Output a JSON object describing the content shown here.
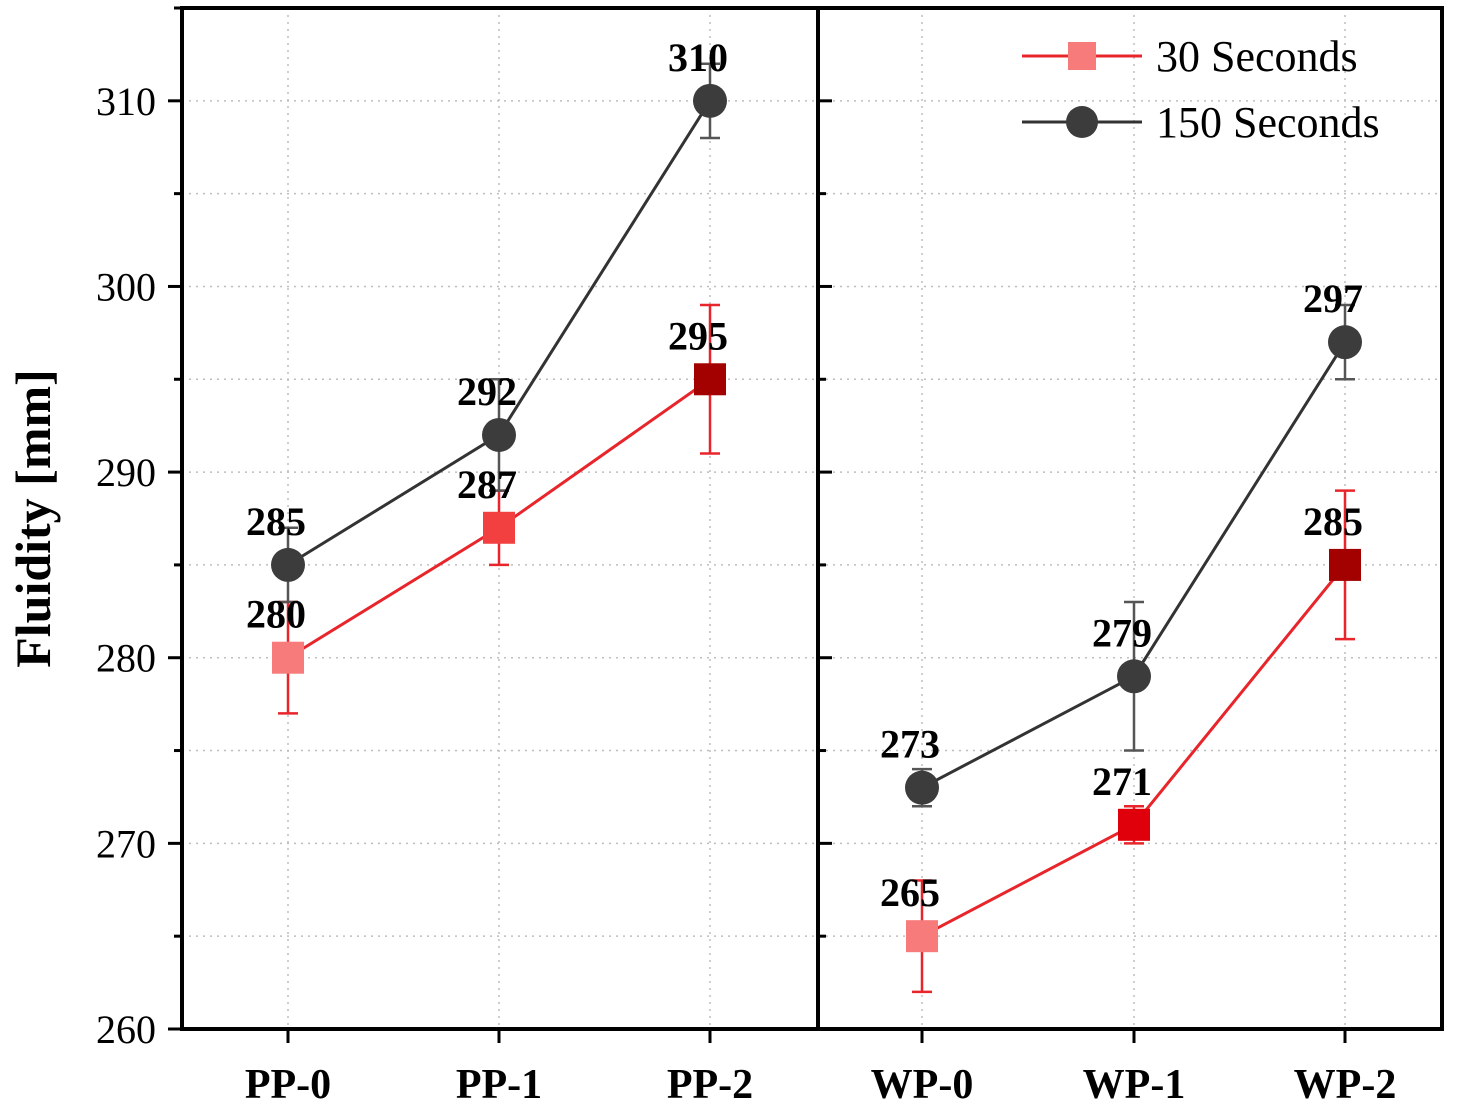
{
  "chart_data": {
    "type": "line",
    "ylabel": "Fluidity [mm]",
    "ylim": [
      260,
      315
    ],
    "yticks": [
      260,
      270,
      280,
      290,
      300,
      310
    ],
    "grid": true,
    "legend_position": "top-right",
    "panels": [
      {
        "name": "PP",
        "categories": [
          "PP-0",
          "PP-1",
          "PP-2"
        ]
      },
      {
        "name": "WP",
        "categories": [
          "WP-0",
          "WP-1",
          "WP-2"
        ]
      }
    ],
    "series": [
      {
        "name": "30 Seconds",
        "marker": "square",
        "line_color": "#e8252b",
        "values": [
          [
            280,
            287,
            295
          ],
          [
            265,
            271,
            285
          ]
        ],
        "errors": [
          [
            3,
            2,
            4
          ],
          [
            3,
            1,
            4
          ]
        ],
        "point_colors": [
          [
            "#f77b7b",
            "#f24040",
            "#a30000"
          ],
          [
            "#f77b7b",
            "#e0000b",
            "#a30000"
          ]
        ],
        "labels": [
          [
            "280",
            "287",
            "295"
          ],
          [
            "265",
            "271",
            "285"
          ]
        ]
      },
      {
        "name": "150 Seconds",
        "marker": "circle",
        "line_color": "#333333",
        "values": [
          [
            285,
            292,
            310
          ],
          [
            273,
            279,
            297
          ]
        ],
        "errors": [
          [
            2,
            3,
            2
          ],
          [
            1,
            4,
            2
          ]
        ],
        "point_colors": [
          [
            "#3c3c3c",
            "#3c3c3c",
            "#3c3c3c"
          ],
          [
            "#3c3c3c",
            "#3c3c3c",
            "#3c3c3c"
          ]
        ],
        "labels": [
          [
            "285",
            "292",
            "310"
          ],
          [
            "273",
            "279",
            "297"
          ]
        ]
      }
    ]
  }
}
